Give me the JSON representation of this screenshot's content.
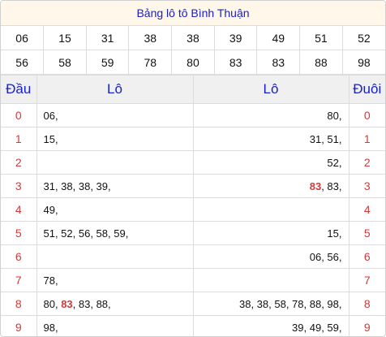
{
  "title": "Bảng lô tô Bình Thuận",
  "numbers_row1": [
    "06",
    "15",
    "31",
    "38",
    "38",
    "39",
    "49",
    "51",
    "52"
  ],
  "numbers_row2": [
    "56",
    "58",
    "59",
    "78",
    "80",
    "83",
    "83",
    "88",
    "98"
  ],
  "highlight_number": "83",
  "headers": {
    "dau": "Đầu",
    "lo_left": "Lô",
    "lo_right": "Lô",
    "duoi": "Đuôi"
  },
  "rows": [
    {
      "dau": "0",
      "left": [
        {
          "t": "06,"
        }
      ],
      "right": [
        {
          "t": "80,"
        }
      ],
      "duoi": "0"
    },
    {
      "dau": "1",
      "left": [
        {
          "t": "15,"
        }
      ],
      "right": [
        {
          "t": "31, 51,"
        }
      ],
      "duoi": "1"
    },
    {
      "dau": "2",
      "left": [],
      "right": [
        {
          "t": "52,"
        }
      ],
      "duoi": "2"
    },
    {
      "dau": "3",
      "left": [
        {
          "t": "31, 38, 38, 39,"
        }
      ],
      "right": [
        {
          "t": "83",
          "hl": true
        },
        {
          "t": ", 83,"
        }
      ],
      "duoi": "3"
    },
    {
      "dau": "4",
      "left": [
        {
          "t": "49,"
        }
      ],
      "right": [],
      "duoi": "4"
    },
    {
      "dau": "5",
      "left": [
        {
          "t": "51, 52, 56, 58, 59,"
        }
      ],
      "right": [
        {
          "t": "15,"
        }
      ],
      "duoi": "5"
    },
    {
      "dau": "6",
      "left": [],
      "right": [
        {
          "t": "06, 56,"
        }
      ],
      "duoi": "6"
    },
    {
      "dau": "7",
      "left": [
        {
          "t": "78,"
        }
      ],
      "right": [],
      "duoi": "7"
    },
    {
      "dau": "8",
      "left": [
        {
          "t": "80, "
        },
        {
          "t": "83",
          "hl": true
        },
        {
          "t": ", 83, 88,"
        }
      ],
      "right": [
        {
          "t": "38, 38, 58, 78, 88, 98,"
        }
      ],
      "duoi": "8"
    },
    {
      "dau": "9",
      "left": [
        {
          "t": "98,"
        }
      ],
      "right": [
        {
          "t": "39, 49, 59,"
        }
      ],
      "duoi": "9"
    }
  ],
  "colors": {
    "accent_blue": "#1a20c8",
    "highlight_red": "#d13a3a",
    "title_bg": "#fff8ea",
    "header_bg": "#f0f0f0"
  }
}
